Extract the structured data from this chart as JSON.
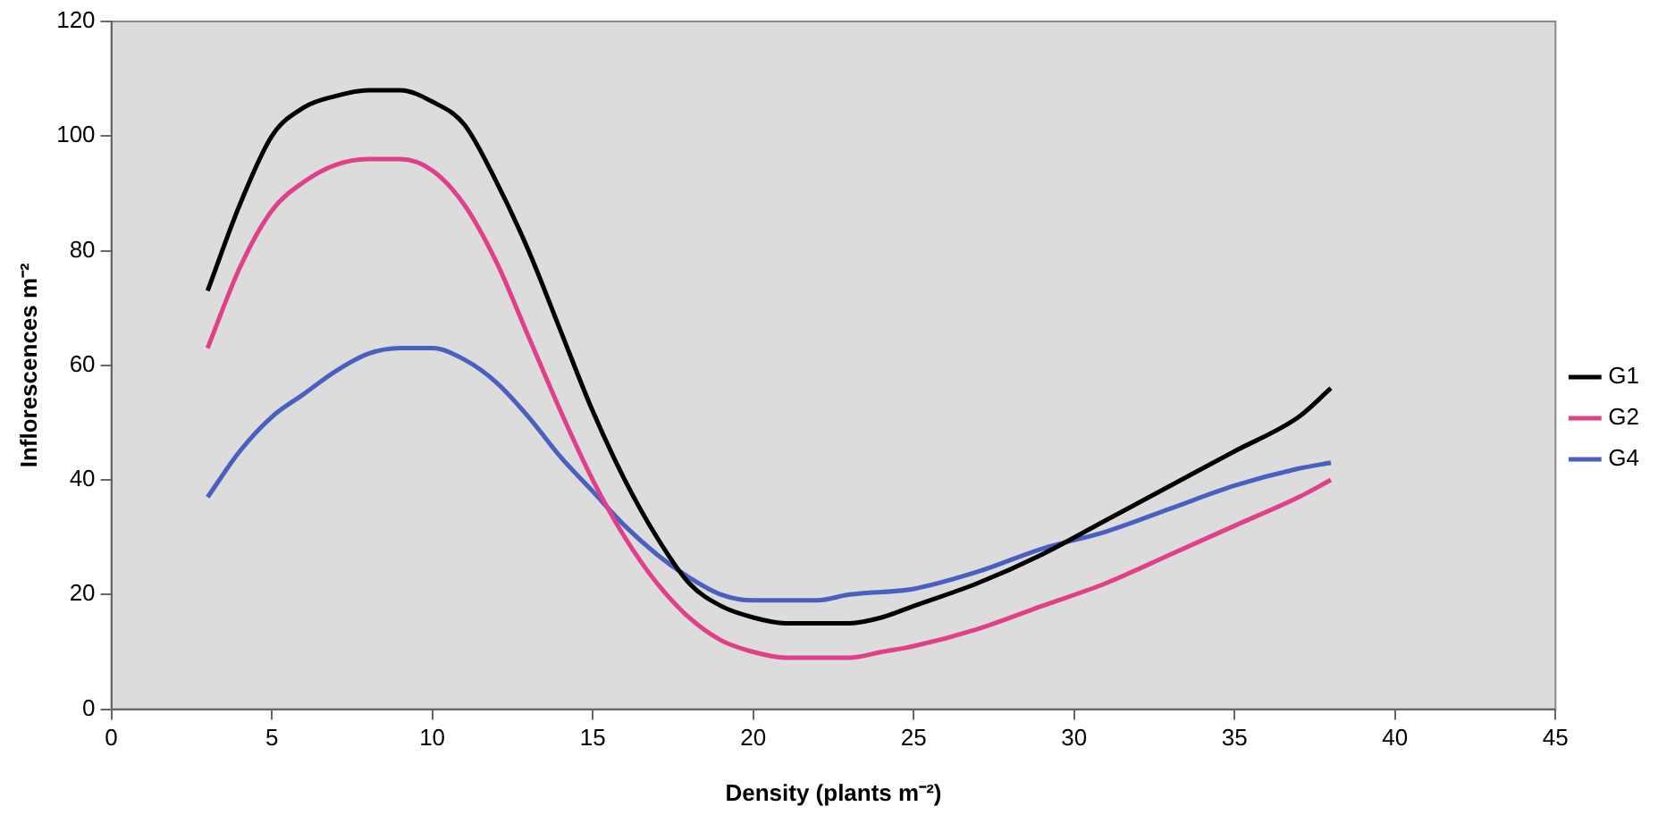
{
  "chart_data": {
    "type": "line",
    "xlabel": "Density (plants m⁻²)",
    "ylabel": "Inflorescences m⁻²",
    "xlim": [
      0,
      45
    ],
    "xticks": [
      0,
      5,
      10,
      15,
      20,
      25,
      30,
      35,
      40,
      45
    ],
    "ylim": [
      0,
      120
    ],
    "yticks": [
      0,
      20,
      40,
      60,
      80,
      100,
      120
    ],
    "grid": false,
    "legend": "right",
    "marker": "none",
    "line_style": "solid",
    "series": [
      {
        "name": "G1",
        "color": "#000000",
        "x": [
          3,
          4,
          5,
          6,
          7,
          8,
          9,
          10,
          11,
          12,
          13,
          14,
          15,
          16,
          17,
          18,
          19,
          20,
          21,
          22,
          23,
          24,
          25,
          27,
          29,
          31,
          33,
          35,
          37,
          38
        ],
        "values": [
          73,
          88,
          100,
          105,
          107,
          108,
          108,
          106,
          102,
          92,
          80,
          66,
          52,
          40,
          30,
          22,
          18,
          16,
          15,
          15,
          15,
          16,
          18,
          22,
          27,
          33,
          39,
          45,
          51,
          56
        ]
      },
      {
        "name": "G2",
        "color": "#e0408a",
        "x": [
          3,
          4,
          5,
          6,
          7,
          8,
          9,
          10,
          11,
          12,
          13,
          14,
          15,
          16,
          17,
          18,
          19,
          20,
          21,
          22,
          23,
          24,
          25,
          27,
          29,
          31,
          33,
          35,
          37,
          38
        ],
        "values": [
          63,
          77,
          87,
          92,
          95,
          96,
          96,
          94,
          88,
          78,
          65,
          52,
          40,
          30,
          22,
          16,
          12,
          10,
          9,
          9,
          9,
          10,
          11,
          14,
          18,
          22,
          27,
          32,
          37,
          40
        ]
      },
      {
        "name": "G4",
        "color": "#4a5fc0",
        "x": [
          3,
          4,
          5,
          6,
          7,
          8,
          9,
          10,
          11,
          12,
          13,
          14,
          15,
          16,
          17,
          18,
          19,
          20,
          21,
          22,
          23,
          25,
          27,
          29,
          31,
          33,
          35,
          37,
          38
        ],
        "values": [
          37,
          45,
          51,
          55,
          59,
          62,
          63,
          63,
          61,
          57,
          51,
          44,
          38,
          32,
          27,
          23,
          20,
          19,
          19,
          19,
          20,
          21,
          24,
          28,
          31,
          35,
          39,
          42,
          43
        ]
      }
    ]
  }
}
